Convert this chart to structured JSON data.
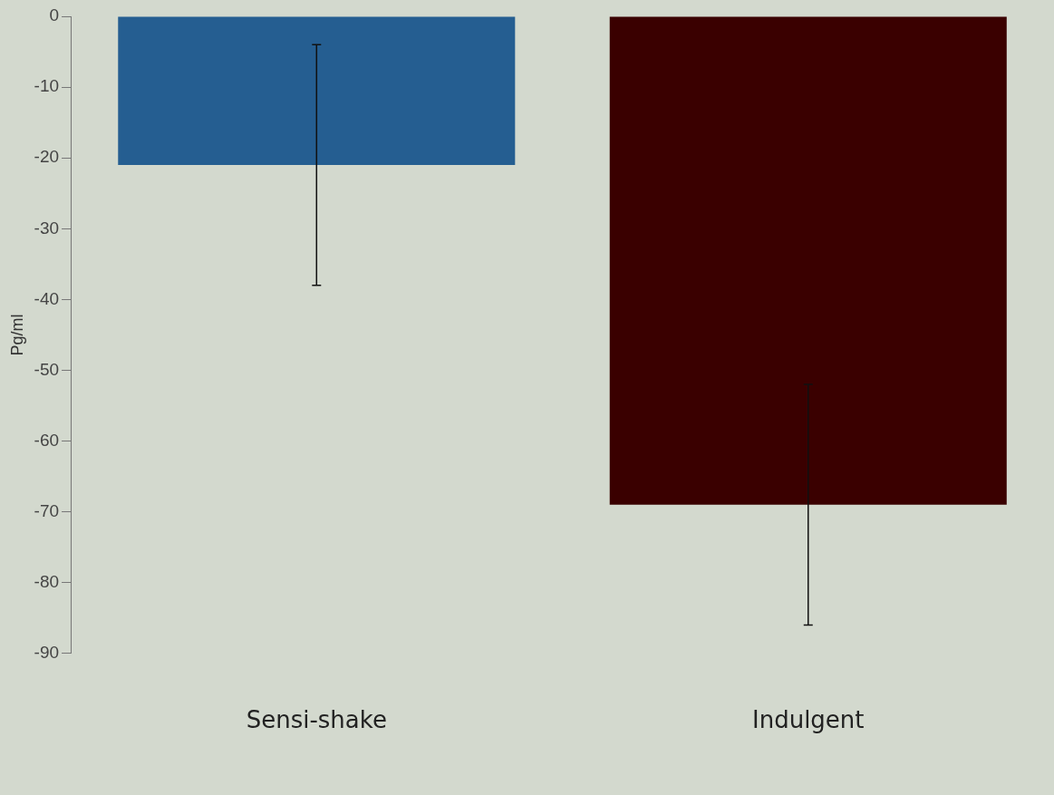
{
  "chart_data": {
    "type": "bar",
    "ylabel": "Pg/ml",
    "categories": [
      "Sensi-shake",
      "Indulgent"
    ],
    "values": [
      -21,
      -69
    ],
    "colors": [
      "#255e91",
      "#3a0000"
    ],
    "errors": [
      17,
      17
    ],
    "ylim": [
      -90,
      0
    ],
    "yticks": [
      -90,
      -80,
      -70,
      -60,
      -50,
      -40,
      -30,
      -20,
      -10,
      0
    ],
    "grid": false,
    "legend": false
  }
}
